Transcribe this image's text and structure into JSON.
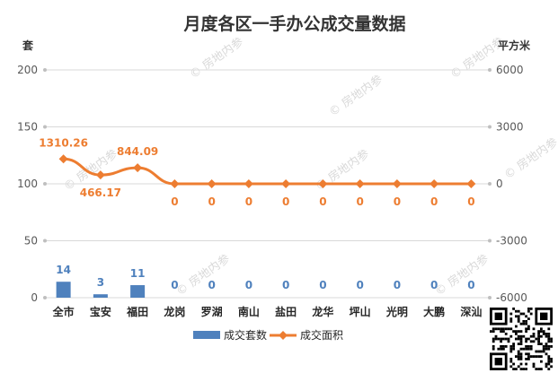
{
  "chart_data": {
    "type": "bar",
    "title": "月度各区一手办公成交量数据",
    "left_unit": "套",
    "right_unit": "平方米",
    "categories": [
      "全市",
      "宝安",
      "福田",
      "龙岗",
      "罗湖",
      "南山",
      "盐田",
      "龙华",
      "坪山",
      "光明",
      "大鹏",
      "深汕"
    ],
    "left_ticks": [
      "200",
      "150",
      "100",
      "50",
      "0"
    ],
    "right_ticks": [
      "6000",
      "3000",
      "0",
      "-3000",
      "-6000"
    ],
    "ylim_left": [
      0,
      200
    ],
    "ylim_right": [
      -6000,
      6000
    ],
    "series": [
      {
        "name": "成交套数",
        "type": "bar",
        "axis": "left",
        "color": "#4f81bd",
        "values": [
          14,
          3,
          11,
          0,
          0,
          0,
          0,
          0,
          0,
          0,
          0,
          0
        ],
        "labels": [
          "14",
          "3",
          "11",
          "0",
          "0",
          "0",
          "0",
          "0",
          "0",
          "0",
          "0",
          "0"
        ]
      },
      {
        "name": "成交面积",
        "type": "line",
        "axis": "right",
        "color": "#ed7d31",
        "values": [
          1310.26,
          466.17,
          844.09,
          0,
          0,
          0,
          0,
          0,
          0,
          0,
          0,
          0
        ],
        "labels": [
          "1310.26",
          "466.17",
          "844.09",
          "0",
          "0",
          "0",
          "0",
          "0",
          "0",
          "0",
          "0",
          "0"
        ]
      }
    ],
    "legend": [
      "成交套数",
      "成交面积"
    ],
    "legend_position": "bottom",
    "grid": true
  },
  "watermark": "房地内参",
  "qr_icon": "qr-code-icon"
}
